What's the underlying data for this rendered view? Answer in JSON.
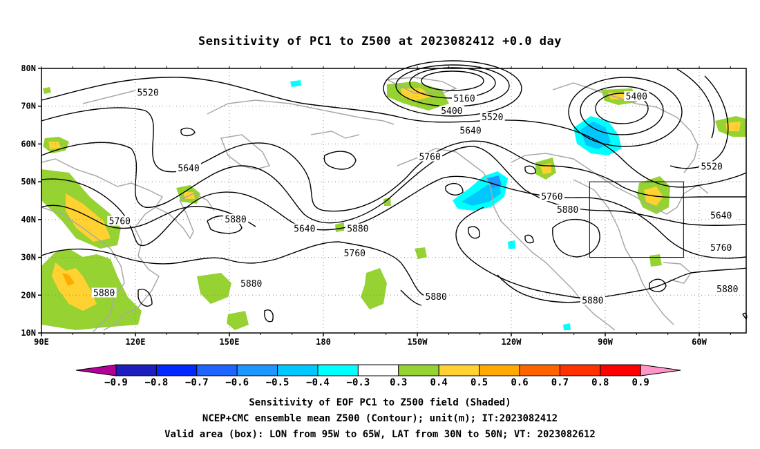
{
  "title": "Sensitivity of PC1 to Z500 at 2023082412 +0.0 day",
  "map": {
    "lat_labels": [
      "80N",
      "70N",
      "60N",
      "50N",
      "40N",
      "30N",
      "20N",
      "10N"
    ],
    "lon_labels": [
      "90E",
      "120E",
      "150E",
      "180",
      "150W",
      "120W",
      "90W",
      "60W"
    ],
    "lat_values": [
      80,
      70,
      60,
      50,
      40,
      30,
      20,
      10
    ],
    "lon_values": [
      90,
      120,
      150,
      180,
      210,
      240,
      270,
      300
    ],
    "lon_range": [
      90,
      315
    ],
    "lat_range": [
      10,
      80
    ],
    "contour_labels": [
      {
        "text": "5520",
        "lon": 124,
        "lat": 73.5
      },
      {
        "text": "5160",
        "lon": 225,
        "lat": 72
      },
      {
        "text": "5400",
        "lon": 221,
        "lat": 68.7
      },
      {
        "text": "5520",
        "lon": 234,
        "lat": 67
      },
      {
        "text": "5400",
        "lon": 280,
        "lat": 72.5
      },
      {
        "text": "5640",
        "lon": 227,
        "lat": 63.5
      },
      {
        "text": "5760",
        "lon": 214,
        "lat": 56.5
      },
      {
        "text": "5640",
        "lon": 137,
        "lat": 53.5
      },
      {
        "text": "5520",
        "lon": 304,
        "lat": 54
      },
      {
        "text": "5760",
        "lon": 253,
        "lat": 46
      },
      {
        "text": "5880",
        "lon": 152,
        "lat": 40
      },
      {
        "text": "5640",
        "lon": 174,
        "lat": 37.5
      },
      {
        "text": "5760",
        "lon": 190,
        "lat": 31
      },
      {
        "text": "5880",
        "lon": 191,
        "lat": 37.5
      },
      {
        "text": "5880",
        "lon": 258,
        "lat": 42.5
      },
      {
        "text": "5640",
        "lon": 307,
        "lat": 41
      },
      {
        "text": "5760",
        "lon": 115,
        "lat": 39.5
      },
      {
        "text": "5760",
        "lon": 307,
        "lat": 32.5
      },
      {
        "text": "5880",
        "lon": 157,
        "lat": 23
      },
      {
        "text": "5880",
        "lon": 110,
        "lat": 20.5
      },
      {
        "text": "5880",
        "lon": 309,
        "lat": 21.5
      },
      {
        "text": "5880",
        "lon": 216,
        "lat": 19.5
      },
      {
        "text": "5880",
        "lon": 266,
        "lat": 18.5
      }
    ],
    "valid_box": {
      "lon_min": 265,
      "lon_max": 295,
      "lat_min": 30,
      "lat_max": 50
    }
  },
  "colorbar": {
    "colors": [
      "#b40096",
      "#1e1ebe",
      "#0028ff",
      "#1e64ff",
      "#1e96ff",
      "#00c8ff",
      "#00ffff",
      "#ffffff",
      "#96d232",
      "#ffd232",
      "#ffaa00",
      "#ff6400",
      "#ff3200",
      "#ff0000",
      "#ff96c8"
    ],
    "labels": [
      "−0.9",
      "−0.8",
      "−0.7",
      "−0.6",
      "−0.5",
      "−0.4",
      "−0.3",
      "0.3",
      "0.4",
      "0.5",
      "0.6",
      "0.7",
      "0.8",
      "0.9"
    ]
  },
  "footer": {
    "line1": "Sensitivity of EOF PC1 to Z500 field (Shaded)",
    "line2": "NCEP+CMC ensemble mean Z500 (Contour); unit(m); IT:2023082412",
    "line3": "Valid area (box): LON from 95W to 65W, LAT from 30N to 50N; VT: 2023082612"
  }
}
